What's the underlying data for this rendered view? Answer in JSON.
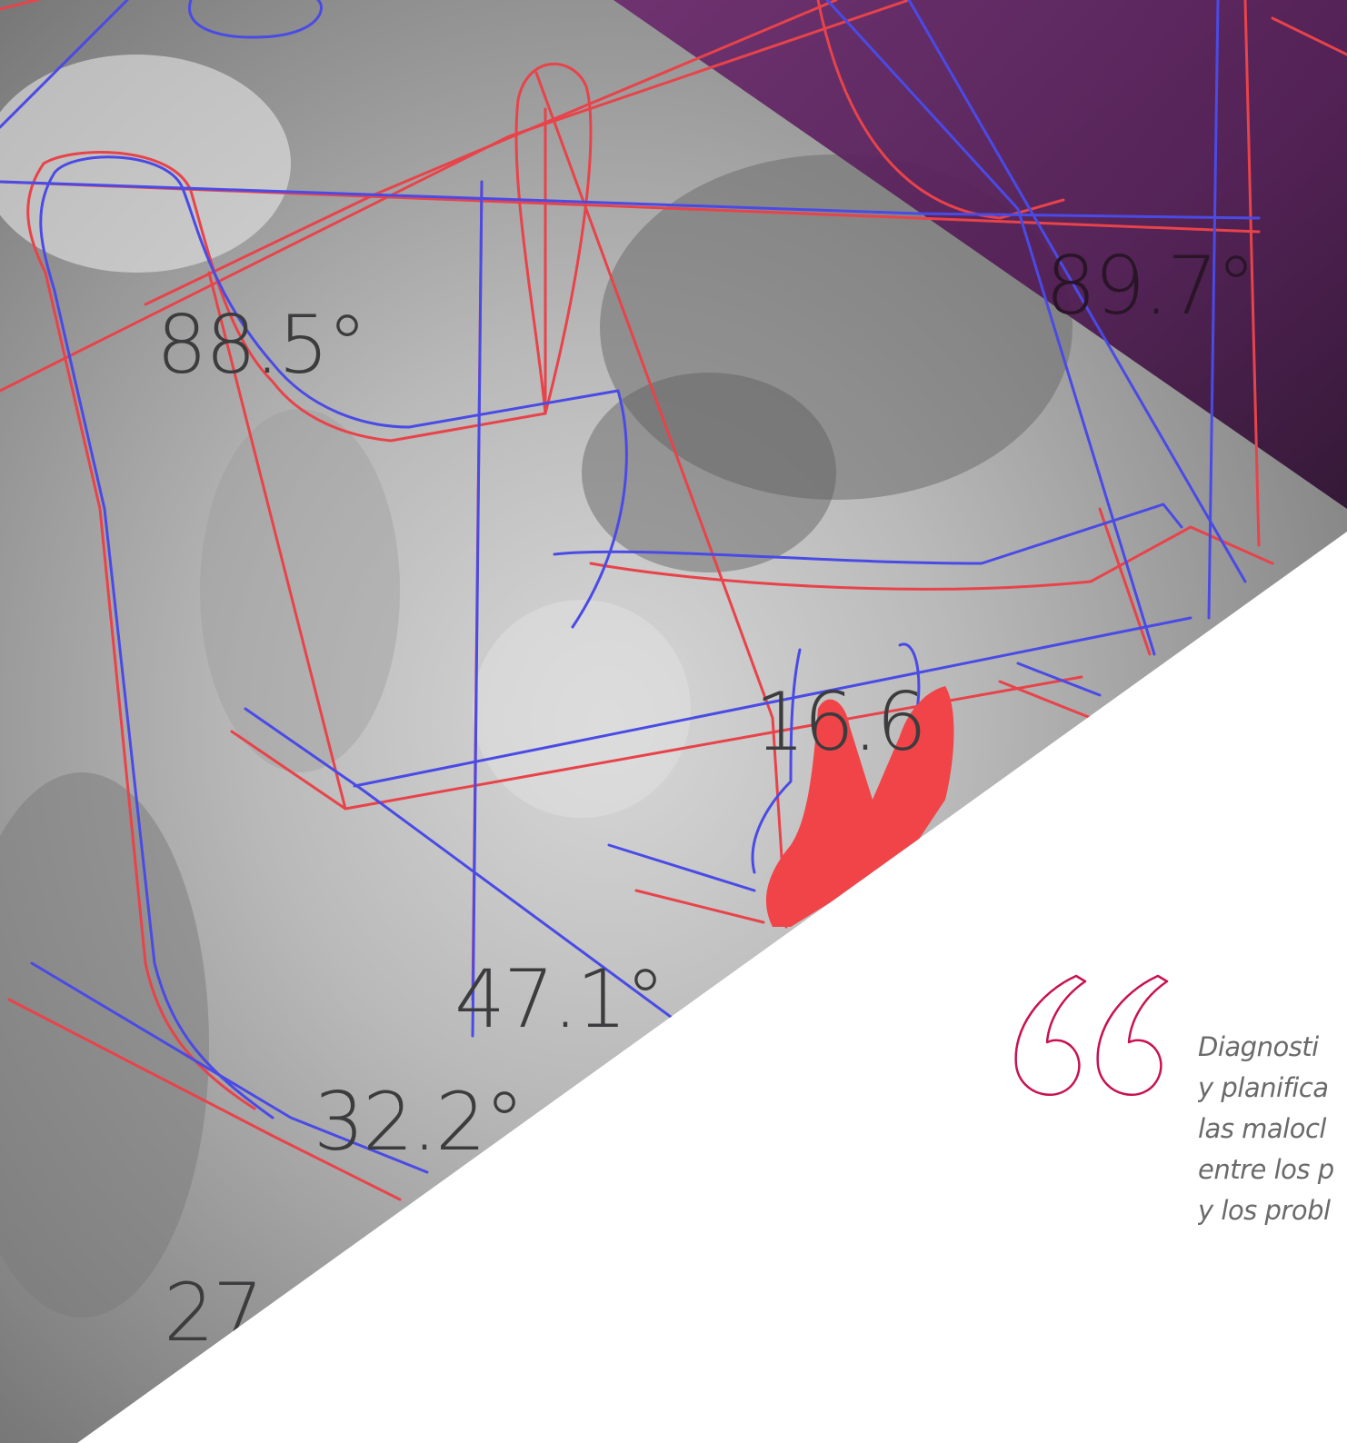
{
  "image": {
    "description_icon": "cephalometric-xray-tracing",
    "colors": {
      "purple_overlay": "#5b1f5f",
      "trace_red": "#e8434a",
      "trace_blue": "#4a4ae6",
      "quote_mark": "#c8124f",
      "quote_text": "#6a6a6a"
    }
  },
  "measurements": [
    {
      "id": "upper-left",
      "value": "88.5°"
    },
    {
      "id": "upper-right",
      "value": "89.7°"
    },
    {
      "id": "middle",
      "value": "16.6"
    },
    {
      "id": "lower-1",
      "value": "47.1°"
    },
    {
      "id": "lower-2",
      "value": "32.2°"
    },
    {
      "id": "lower-3",
      "value": "27"
    }
  ],
  "quote": {
    "icon": "quote-open-icon",
    "lines": [
      "Diagnosti",
      "y planifica",
      "las malocl",
      "entre los p",
      "y los probl"
    ]
  }
}
